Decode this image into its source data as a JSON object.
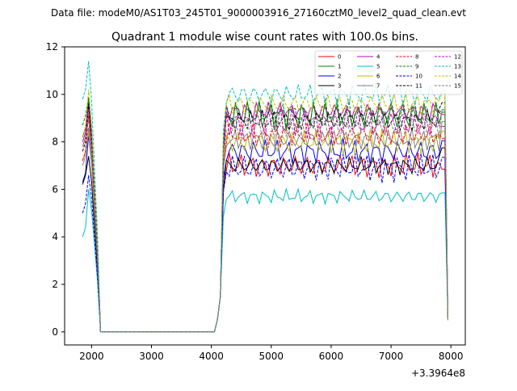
{
  "figure": {
    "suptitle": "Data file: modeM0/AS1T03_245T01_9000003916_27160cztM0_level2_quad_clean.evt",
    "offset_label": "+3.3964e8"
  },
  "chart_data": {
    "type": "line",
    "title": "Quadrant 1 module wise count rates with 100.0s bins.",
    "xlabel": "",
    "ylabel": "",
    "xlim": [
      1550,
      8240
    ],
    "ylim": [
      -0.55,
      12
    ],
    "x_offset": 339640000,
    "xticks": [
      2000,
      3000,
      4000,
      5000,
      6000,
      7000,
      8000
    ],
    "xtick_labels": [
      "2000",
      "3000",
      "4000",
      "5000",
      "6000",
      "7000",
      "8000"
    ],
    "yticks": [
      0,
      2,
      4,
      6,
      8,
      10,
      12
    ],
    "ytick_labels": [
      "0",
      "2",
      "4",
      "6",
      "8",
      "10",
      "12"
    ],
    "grid": false,
    "legend_position": "top-right",
    "legend_columns": 4,
    "series": [
      {
        "name": "0",
        "color": "#ff0000",
        "dash": "solid",
        "base": 7.0,
        "amp": 0.35,
        "peak": 9.0
      },
      {
        "name": "1",
        "color": "#008000",
        "dash": "solid",
        "base": 9.1,
        "amp": 0.4,
        "peak": 9.8
      },
      {
        "name": "2",
        "color": "#0000ff",
        "dash": "solid",
        "base": 7.6,
        "amp": 0.35,
        "peak": 8.3
      },
      {
        "name": "3",
        "color": "#000000",
        "dash": "solid",
        "base": 7.0,
        "amp": 0.25,
        "peak": 7.4
      },
      {
        "name": "4",
        "color": "#bf00bf",
        "dash": "solid",
        "base": 9.3,
        "amp": 0.25,
        "peak": 9.6
      },
      {
        "name": "5",
        "color": "#00bfbf",
        "dash": "solid",
        "base": 5.7,
        "amp": 0.2,
        "peak": 6.0
      },
      {
        "name": "6",
        "color": "#bfbf00",
        "dash": "solid",
        "base": 8.0,
        "amp": 0.35,
        "peak": 8.4
      },
      {
        "name": "7",
        "color": "#808080",
        "dash": "solid",
        "base": 8.1,
        "amp": 0.3,
        "peak": 8.6
      },
      {
        "name": "8",
        "color": "#ff0000",
        "dash": "dashed",
        "base": 8.3,
        "amp": 0.35,
        "peak": 9.2
      },
      {
        "name": "9",
        "color": "#008000",
        "dash": "dashed",
        "base": 9.2,
        "amp": 0.4,
        "peak": 9.9
      },
      {
        "name": "10",
        "color": "#0000ff",
        "dash": "dashed",
        "base": 6.9,
        "amp": 0.4,
        "peak": 6.6
      },
      {
        "name": "11",
        "color": "#000000",
        "dash": "dashed",
        "base": 8.9,
        "amp": 0.3,
        "peak": 9.6
      },
      {
        "name": "12",
        "color": "#bf00bf",
        "dash": "dashed",
        "base": 8.8,
        "amp": 0.45,
        "peak": 9.4
      },
      {
        "name": "13",
        "color": "#00bfbf",
        "dash": "dashed",
        "base": 10.0,
        "amp": 0.3,
        "peak": 11.4
      },
      {
        "name": "14",
        "color": "#bfbf00",
        "dash": "dashed",
        "base": 9.6,
        "amp": 0.3,
        "peak": 10.2
      },
      {
        "name": "15",
        "color": "#808080",
        "dash": "dashed",
        "base": 8.6,
        "amp": 0.3,
        "peak": 9.0
      }
    ]
  }
}
